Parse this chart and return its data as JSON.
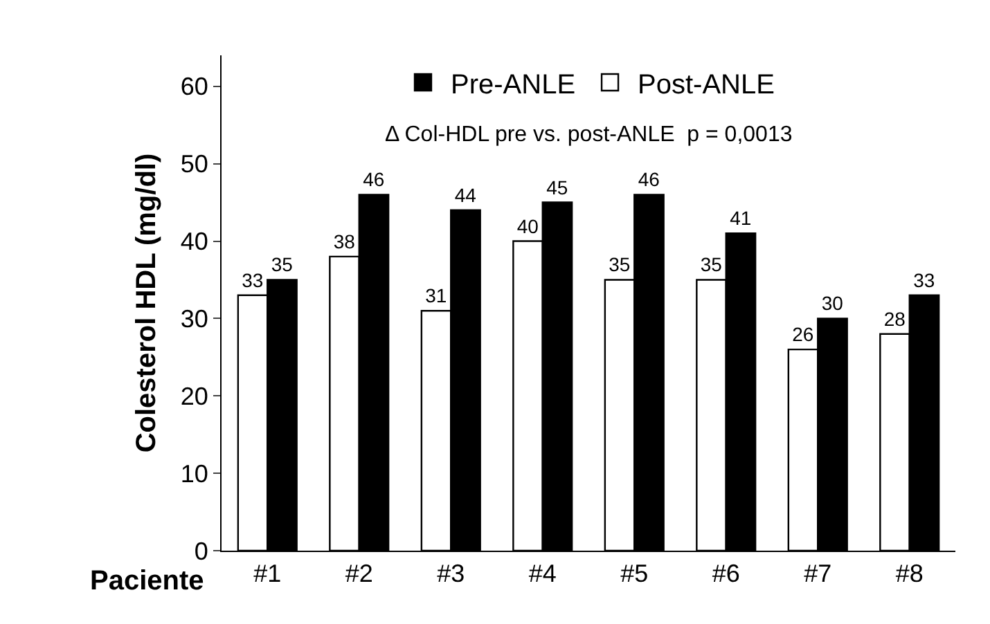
{
  "chart_data": {
    "type": "bar",
    "xlabel": "Paciente",
    "ylabel": "Colesterol HDL (mg/dl)",
    "categories": [
      "#1",
      "#2",
      "#3",
      "#4",
      "#5",
      "#6",
      "#7",
      "#8"
    ],
    "series": [
      {
        "name": "Post-ANLE",
        "color": "#ffffff",
        "values": [
          33,
          38,
          31,
          40,
          35,
          35,
          26,
          28
        ]
      },
      {
        "name": "Pre-ANLE",
        "color": "#000000",
        "values": [
          35,
          46,
          44,
          45,
          46,
          41,
          30,
          33
        ]
      }
    ],
    "ylim": [
      0,
      64
    ],
    "yticks": [
      0,
      10,
      20,
      30,
      40,
      50,
      60
    ],
    "legend": "top",
    "data_labels": true,
    "annotations": [
      "Δ Col-HDL pre vs. post-ANLE  p = 0,0013"
    ]
  }
}
